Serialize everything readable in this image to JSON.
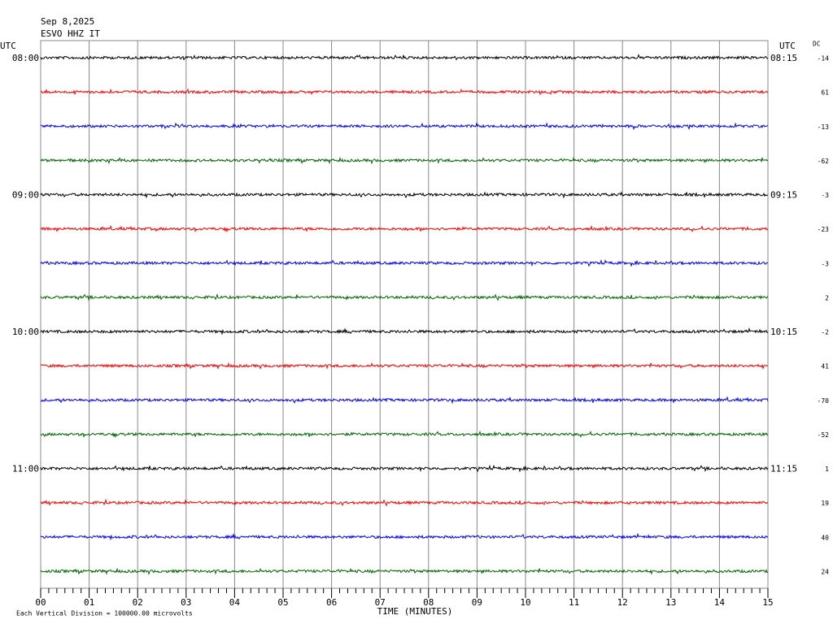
{
  "header": {
    "date": "Sep 8,2025",
    "station": "ESVO HHZ IT"
  },
  "left_axis": {
    "label": "UTC",
    "times": [
      "08:00",
      "09:00",
      "10:00",
      "11:00"
    ]
  },
  "right_axis": {
    "label": "UTC",
    "times": [
      "08:15",
      "09:15",
      "10:15",
      "11:15"
    ]
  },
  "dc": {
    "label": "DC",
    "values": [
      -14,
      61,
      -13,
      -62,
      -3,
      -23,
      -3,
      2,
      -2,
      41,
      -70,
      -52,
      1,
      19,
      40,
      24
    ]
  },
  "x_axis": {
    "ticks": [
      "00",
      "01",
      "02",
      "03",
      "04",
      "05",
      "06",
      "07",
      "08",
      "09",
      "10",
      "11",
      "12",
      "13",
      "14",
      "15"
    ],
    "title": "TIME (MINUTES)"
  },
  "footnote": "Each Vertical Division = 100000.00 microvolts",
  "trace_colors": [
    "#000000",
    "#ff0000",
    "#0000ff",
    "#006400"
  ]
}
